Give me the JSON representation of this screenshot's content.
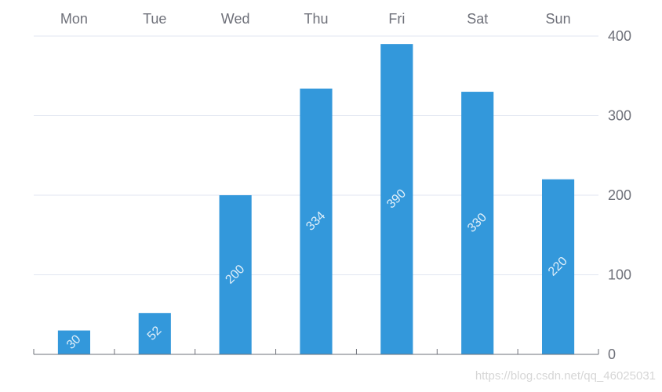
{
  "chart_data": {
    "type": "bar",
    "categories": [
      "Mon",
      "Tue",
      "Wed",
      "Thu",
      "Fri",
      "Sat",
      "Sun"
    ],
    "values": [
      30,
      52,
      200,
      334,
      390,
      330,
      220
    ],
    "data_labels": [
      "30",
      "52",
      "200",
      "334",
      "390",
      "330",
      "220"
    ],
    "y_ticks": [
      "0",
      "100",
      "200",
      "300",
      "400"
    ],
    "ylim": [
      0,
      400
    ],
    "x_axis_position": "top",
    "y_axis_position": "right",
    "grid": true,
    "bar_color": "#3398db",
    "grid_color": "#e0e6f1",
    "axis_color": "#6e7079"
  },
  "watermark": "https://blog.csdn.net/qq_46025031"
}
